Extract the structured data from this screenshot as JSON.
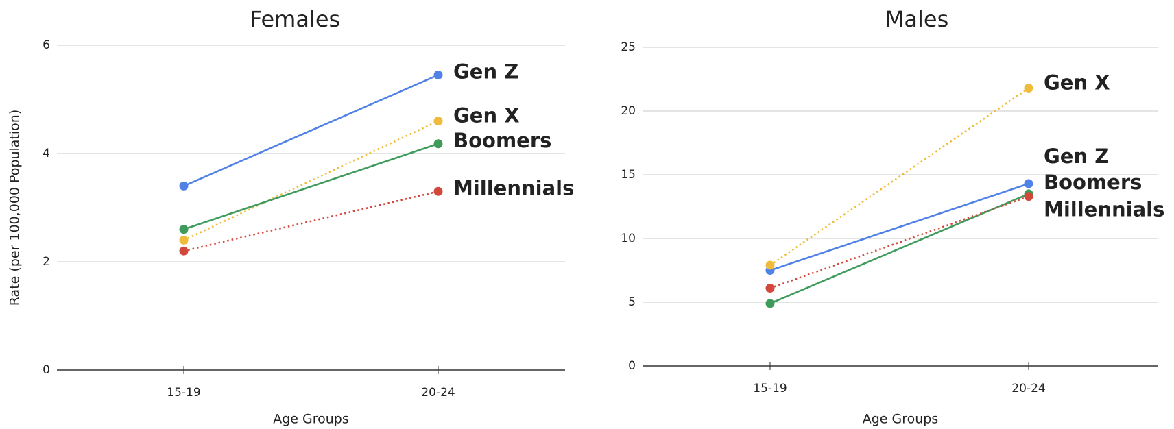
{
  "chart_data": [
    {
      "type": "line",
      "title": "Females",
      "x_label": "Age Groups",
      "y_label": "Rate (per 100,000 Population)",
      "categories": [
        "15-19",
        "20-24"
      ],
      "series": [
        {
          "name": "Gen Z",
          "color": "#4f81e6",
          "style": "solid",
          "values": [
            3.4,
            5.45
          ]
        },
        {
          "name": "Gen X",
          "color": "#efbb3a",
          "style": "dotted",
          "values": [
            2.4,
            4.6
          ]
        },
        {
          "name": "Boomers",
          "color": "#3f9b5c",
          "style": "solid",
          "values": [
            2.6,
            4.18
          ]
        },
        {
          "name": "Millennials",
          "color": "#d2493c",
          "style": "dotted",
          "values": [
            2.2,
            3.3
          ]
        }
      ],
      "ylim": [
        0,
        6
      ],
      "yticks": [
        0,
        2,
        4,
        6
      ],
      "grid": true
    },
    {
      "type": "line",
      "title": "Males",
      "x_label": "Age Groups",
      "categories": [
        "15-19",
        "20-24"
      ],
      "series": [
        {
          "name": "Gen Z",
          "color": "#4f81e6",
          "style": "solid",
          "values": [
            7.5,
            14.3
          ]
        },
        {
          "name": "Gen X",
          "color": "#efbb3a",
          "style": "dotted",
          "values": [
            7.9,
            21.8
          ]
        },
        {
          "name": "Boomers",
          "color": "#3f9b5c",
          "style": "solid",
          "values": [
            4.9,
            13.5
          ]
        },
        {
          "name": "Millennials",
          "color": "#d2493c",
          "style": "dotted",
          "values": [
            6.1,
            13.3
          ]
        }
      ],
      "ylim": [
        0,
        25
      ],
      "yticks": [
        0,
        5,
        10,
        15,
        20,
        25
      ],
      "grid": true
    }
  ]
}
